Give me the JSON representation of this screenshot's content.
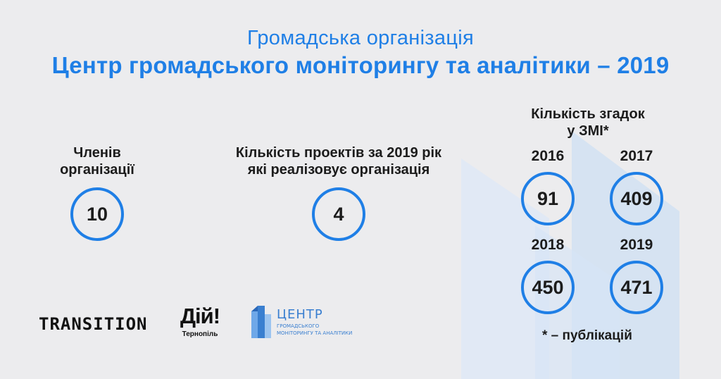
{
  "header": {
    "subtitle": "Громадська організація",
    "title": "Центр громадського моніторингу та аналітики – 2019"
  },
  "members": {
    "label_line1": "Членів",
    "label_line2": "організації",
    "value": "10"
  },
  "projects": {
    "label_line1": "Кількість проектів за 2019 рік",
    "label_line2": "які реалізовує організація",
    "value": "4"
  },
  "media": {
    "label_line1": "Кількість згадок",
    "label_line2": "у ЗМІ*",
    "years": [
      {
        "year": "2016",
        "value": "91"
      },
      {
        "year": "2017",
        "value": "409"
      },
      {
        "year": "2018",
        "value": "450"
      },
      {
        "year": "2019",
        "value": "471"
      }
    ],
    "footnote": "* – публікацій"
  },
  "logos": {
    "transition": "TRANSITION",
    "diy": "Дій!",
    "diy_sub": "Тернопіль",
    "centr_word": "ЦЕНТР",
    "centr_line1": "ГРОМАДСЬКОГО",
    "centr_line2": "МОНІТОРИНГУ ТА АНАЛІТИКИ"
  },
  "colors": {
    "accent": "#1f7fe6",
    "background": "#ececee",
    "text": "#1c1c1c"
  }
}
